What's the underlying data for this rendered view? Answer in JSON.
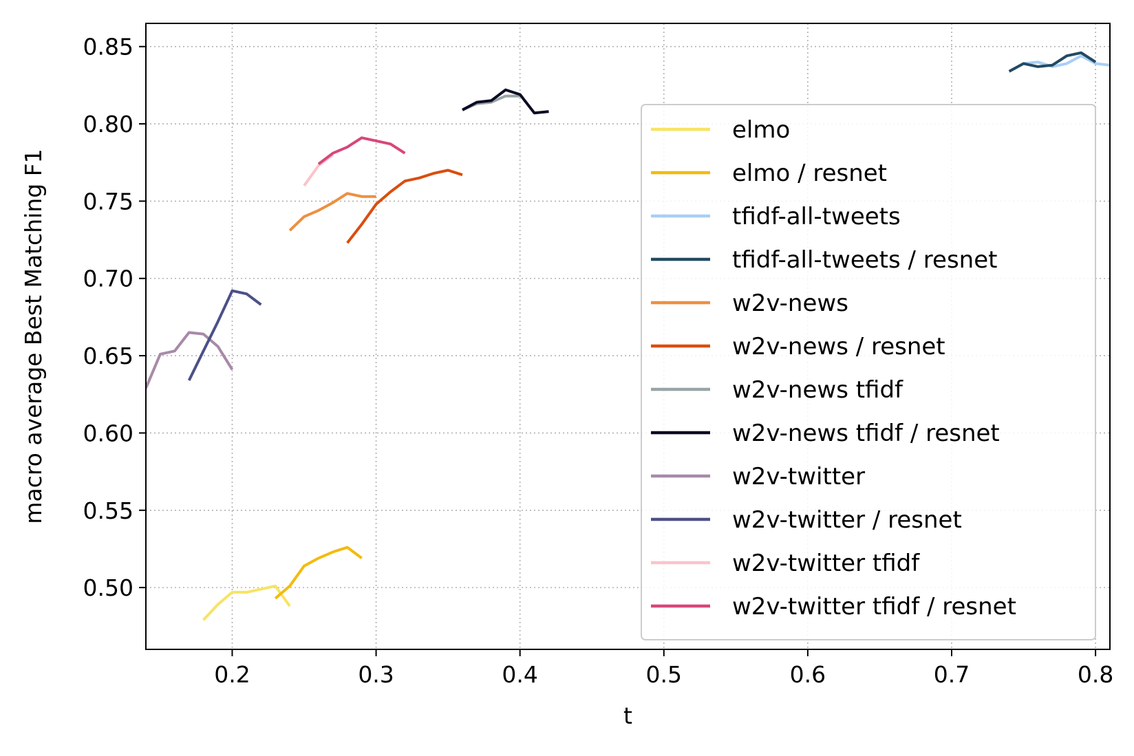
{
  "chart_data": {
    "type": "line",
    "title": "",
    "xlabel": "t",
    "ylabel": "macro average Best Matching F1",
    "xlim": [
      0.14,
      0.81
    ],
    "ylim": [
      0.46,
      0.865
    ],
    "xticks": [
      0.2,
      0.3,
      0.4,
      0.5,
      0.6,
      0.7,
      0.8
    ],
    "xtick_labels": [
      "0.2",
      "0.3",
      "0.4",
      "0.5",
      "0.6",
      "0.7",
      "0.8"
    ],
    "yticks": [
      0.5,
      0.55,
      0.6,
      0.65,
      0.7,
      0.75,
      0.8,
      0.85
    ],
    "ytick_labels": [
      "0.50",
      "0.55",
      "0.60",
      "0.65",
      "0.70",
      "0.75",
      "0.80",
      "0.85"
    ],
    "grid": true,
    "legend_position": "right",
    "series": [
      {
        "name": "elmo",
        "color": "#f7e463",
        "x": [
          0.18,
          0.19,
          0.2,
          0.21,
          0.22,
          0.23,
          0.24
        ],
        "y": [
          0.479,
          0.489,
          0.497,
          0.497,
          0.499,
          0.501,
          0.488
        ]
      },
      {
        "name": "elmo / resnet",
        "color": "#f2bb10",
        "x": [
          0.23,
          0.24,
          0.25,
          0.26,
          0.27,
          0.28,
          0.29
        ],
        "y": [
          0.493,
          0.501,
          0.514,
          0.519,
          0.523,
          0.526,
          0.519
        ]
      },
      {
        "name": "tfidf-all-tweets",
        "color": "#a8cff5",
        "x": [
          0.74,
          0.75,
          0.76,
          0.77,
          0.78,
          0.79,
          0.8,
          0.81
        ],
        "y": [
          0.834,
          0.839,
          0.84,
          0.837,
          0.839,
          0.844,
          0.839,
          0.838
        ]
      },
      {
        "name": "tfidf-all-tweets / resnet",
        "color": "#234a62",
        "x": [
          0.74,
          0.75,
          0.76,
          0.77,
          0.78,
          0.79,
          0.8
        ],
        "y": [
          0.834,
          0.839,
          0.837,
          0.838,
          0.844,
          0.846,
          0.84
        ]
      },
      {
        "name": "w2v-news",
        "color": "#ec9040",
        "x": [
          0.24,
          0.25,
          0.26,
          0.27,
          0.28,
          0.29,
          0.3
        ],
        "y": [
          0.731,
          0.74,
          0.744,
          0.749,
          0.755,
          0.753,
          0.753
        ]
      },
      {
        "name": "w2v-news / resnet",
        "color": "#d94e0e",
        "x": [
          0.28,
          0.29,
          0.3,
          0.31,
          0.32,
          0.33,
          0.34,
          0.35,
          0.36
        ],
        "y": [
          0.723,
          0.735,
          0.748,
          0.756,
          0.763,
          0.765,
          0.768,
          0.77,
          0.767
        ]
      },
      {
        "name": "w2v-news tfidf",
        "color": "#98a4a6",
        "x": [
          0.36,
          0.37,
          0.38,
          0.39,
          0.4
        ],
        "y": [
          0.809,
          0.813,
          0.814,
          0.818,
          0.818
        ]
      },
      {
        "name": "w2v-news tfidf / resnet",
        "color": "#0b0b24",
        "x": [
          0.36,
          0.37,
          0.38,
          0.39,
          0.4,
          0.41,
          0.42
        ],
        "y": [
          0.809,
          0.814,
          0.815,
          0.822,
          0.819,
          0.807,
          0.808
        ]
      },
      {
        "name": "w2v-twitter",
        "color": "#a88aa8",
        "x": [
          0.14,
          0.15,
          0.16,
          0.17,
          0.18,
          0.19,
          0.2
        ],
        "y": [
          0.629,
          0.651,
          0.653,
          0.665,
          0.664,
          0.656,
          0.641
        ]
      },
      {
        "name": "w2v-twitter / resnet",
        "color": "#4c5088",
        "x": [
          0.17,
          0.18,
          0.19,
          0.2,
          0.21,
          0.22
        ],
        "y": [
          0.634,
          0.653,
          0.672,
          0.692,
          0.69,
          0.683
        ]
      },
      {
        "name": "w2v-twitter tfidf",
        "color": "#fbc4ca",
        "x": [
          0.25,
          0.26,
          0.27
        ],
        "y": [
          0.76,
          0.773,
          0.78
        ]
      },
      {
        "name": "w2v-twitter tfidf / resnet",
        "color": "#d7477a",
        "x": [
          0.26,
          0.27,
          0.28,
          0.29,
          0.3,
          0.31,
          0.32
        ],
        "y": [
          0.774,
          0.781,
          0.785,
          0.791,
          0.789,
          0.787,
          0.781
        ]
      }
    ]
  }
}
